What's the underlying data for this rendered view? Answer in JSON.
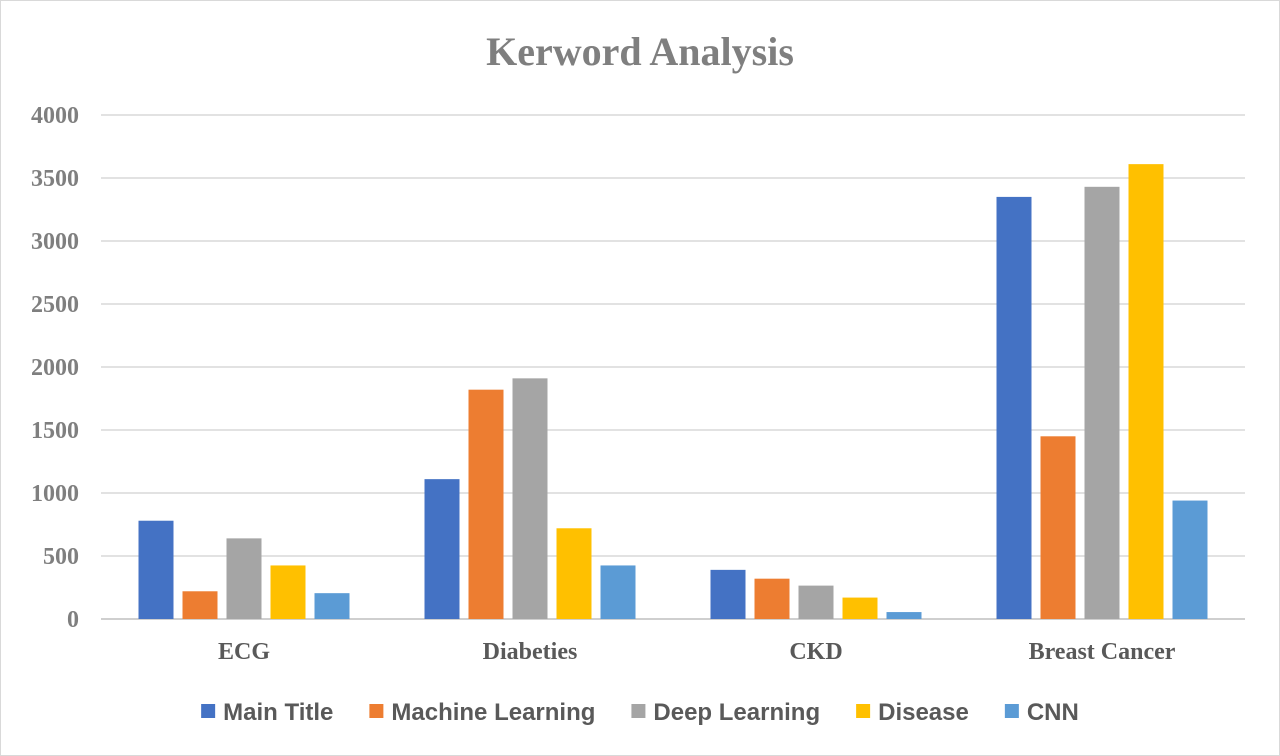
{
  "chart_data": {
    "type": "bar",
    "title": "Kerword Analysis",
    "xlabel": "",
    "ylabel": "",
    "categories": [
      "ECG",
      "Diabeties",
      "CKD",
      "Breast Cancer"
    ],
    "series": [
      {
        "name": "Main Title",
        "color": "#4472c4",
        "values": [
          780,
          1110,
          390,
          3350
        ]
      },
      {
        "name": "Machine Learning",
        "color": "#ed7d31",
        "values": [
          220,
          1820,
          320,
          1450
        ]
      },
      {
        "name": "Deep Learning",
        "color": "#a5a5a5",
        "values": [
          640,
          1910,
          265,
          3430
        ]
      },
      {
        "name": "Disease",
        "color": "#ffc000",
        "values": [
          425,
          720,
          170,
          3610
        ]
      },
      {
        "name": "CNN",
        "color": "#5b9bd5",
        "values": [
          205,
          425,
          55,
          940
        ]
      }
    ],
    "ylim": [
      0,
      4000
    ],
    "yticks": [
      0,
      500,
      1000,
      1500,
      2000,
      2500,
      3000,
      3500,
      4000
    ],
    "grid": true,
    "legend_position": "bottom"
  }
}
